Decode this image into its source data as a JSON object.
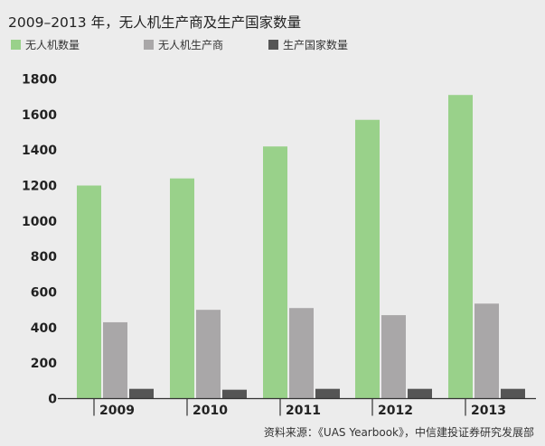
{
  "chart_data": {
    "type": "bar",
    "title": "2009–2013 年，无人机生产商及生产国家数量",
    "categories": [
      "2009",
      "2010",
      "2011",
      "2012",
      "2013"
    ],
    "series": [
      {
        "name": "无人机数量",
        "color": "#99d18a",
        "values": [
          1200,
          1240,
          1420,
          1570,
          1710
        ]
      },
      {
        "name": "无人机生产商",
        "color": "#a9a7a8",
        "values": [
          430,
          500,
          510,
          470,
          535
        ]
      },
      {
        "name": "生产国家数量",
        "color": "#555555",
        "values": [
          55,
          50,
          55,
          55,
          55
        ]
      }
    ],
    "y_ticks": [
      "0",
      "200",
      "400",
      "600",
      "800",
      "1000",
      "1200",
      "1400",
      "1600",
      "1800"
    ],
    "ylim": [
      0,
      1800
    ],
    "grid": false,
    "legend_position": "top-left",
    "source": "资料来源：《UAS Yearbook》，中信建投证券研究发展部"
  }
}
